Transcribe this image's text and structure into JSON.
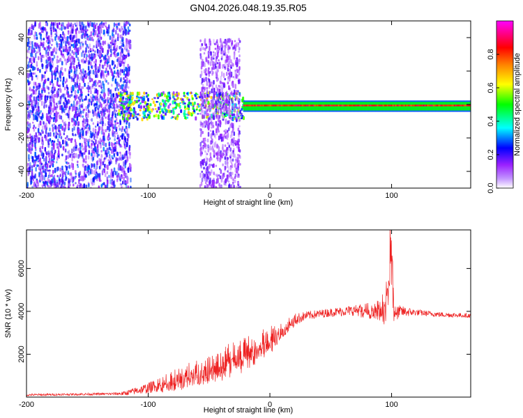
{
  "title": "GN04.2026.048.19.35.R05",
  "chart_data": [
    {
      "type": "heatmap",
      "xlabel": "Height of straight line (km)",
      "ylabel": "Frequency (Hz)",
      "xlim": [
        -200,
        165
      ],
      "ylim": [
        -50,
        50
      ],
      "xticks": [
        -200,
        -100,
        0,
        100
      ],
      "yticks": [
        -40,
        -20,
        0,
        20,
        40
      ],
      "colorbar": {
        "label": "Normalized spectral amplitude",
        "range": [
          0,
          1
        ],
        "ticks": [
          "0.0",
          "0.2",
          "0.4",
          "0.6",
          "0.8"
        ],
        "colors": [
          "#ffffff",
          "#9a20ff",
          "#0000ff",
          "#00ffff",
          "#00ff00",
          "#ffff00",
          "#ff8000",
          "#ff0000",
          "#ff00ff"
        ]
      },
      "regions": [
        {
          "x": [
            -200,
            -115
          ],
          "freq": [
            -50,
            50
          ],
          "amplitude": 0.15,
          "texture": "scattered"
        },
        {
          "x": [
            -125,
            -22
          ],
          "freq": [
            -8,
            8
          ],
          "amplitude": 0.35,
          "texture": "noisy band"
        },
        {
          "x": [
            -58,
            -25
          ],
          "freq": [
            -50,
            40
          ],
          "amplitude": 0.1,
          "texture": "scattered"
        },
        {
          "x": [
            -22,
            165
          ],
          "freq": [
            -4,
            2
          ],
          "amplitude": 0.9,
          "texture": "narrow line near -2 Hz"
        }
      ]
    },
    {
      "type": "line",
      "xlabel": "Height of straight line (km)",
      "ylabel": "SNR (10 * v/v)",
      "xlim": [
        -200,
        165
      ],
      "ylim": [
        0,
        7800
      ],
      "xticks": [
        -200,
        -100,
        0,
        100
      ],
      "yticks": [
        2000,
        4000,
        6000
      ],
      "grid": false,
      "series": [
        {
          "color": "#ee2222",
          "x": [
            -200,
            -160,
            -130,
            -120,
            -100,
            -80,
            -60,
            -40,
            -20,
            0,
            10,
            20,
            30,
            50,
            70,
            90,
            95,
            98,
            100,
            102,
            105,
            120,
            140,
            165
          ],
          "y": [
            100,
            130,
            150,
            170,
            420,
            800,
            1200,
            1600,
            2100,
            2700,
            3200,
            3600,
            3800,
            3950,
            4050,
            4100,
            4300,
            6000,
            7800,
            4200,
            4000,
            3950,
            3850,
            3800
          ],
          "noise": [
            50,
            50,
            60,
            100,
            250,
            450,
            600,
            750,
            750,
            600,
            450,
            300,
            200,
            200,
            250,
            450,
            800,
            1500,
            2500,
            800,
            300,
            150,
            120,
            100
          ]
        }
      ]
    }
  ]
}
